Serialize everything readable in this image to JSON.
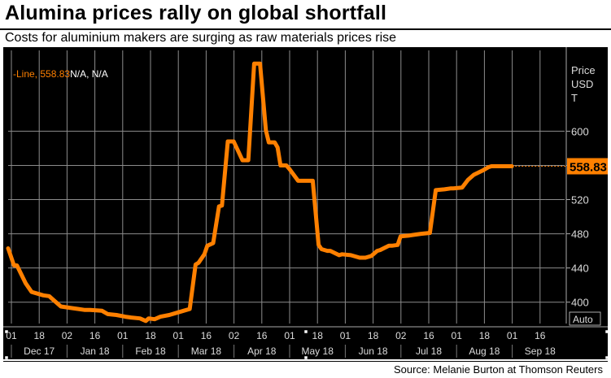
{
  "title": "Alumina prices rally on global shortfall",
  "subtitle": "Costs for aluminium makers are surging as raw materials prices rise",
  "source": "Source: Melanie Burton at Thomson Reuters",
  "chart_data": {
    "type": "line",
    "legend_label": "Line, 558.83",
    "legend_extra": "N/A, N/A",
    "legend_position": "top-left",
    "ylabel_lines": [
      "Price",
      "USD",
      "T"
    ],
    "last_value_label": "558.83",
    "corner_label": "Auto",
    "y_axis_side": "right",
    "ylim": [
      375,
      685
    ],
    "yticks": [
      400,
      440,
      480,
      520,
      560,
      600
    ],
    "ytick_labels": [
      "400",
      "440",
      "480",
      "520",
      "",
      "600"
    ],
    "grid": true,
    "day_ticks": [
      "01",
      "18",
      "02",
      "16",
      "01",
      "18",
      "01",
      "16",
      "02",
      "16",
      "01",
      "18",
      "01",
      "18",
      "02",
      "16",
      "01",
      "18",
      "01",
      "16"
    ],
    "month_labels": [
      "Dec 17",
      "Jan 18",
      "Feb 18",
      "Mar 18",
      "Apr 18",
      "May 18",
      "Jun 18",
      "Jul 18",
      "Aug 18",
      "Sep 18"
    ],
    "colors": {
      "line": "#ff8000",
      "background": "#000000",
      "grid": "#8c8c8c",
      "last_value_bg": "#ff8000"
    },
    "series": [
      {
        "x": [
          0,
          2,
          3,
          6,
          8,
          10,
          12,
          14,
          15,
          18,
          22,
          24,
          26,
          28,
          32,
          34,
          37,
          40,
          42,
          45,
          47,
          48,
          50,
          52,
          55,
          58,
          60,
          62,
          64,
          65,
          67,
          68,
          70,
          72,
          73,
          75,
          77,
          80,
          82,
          84,
          86,
          88,
          89,
          91,
          92,
          93,
          95,
          96,
          99,
          101,
          104,
          106,
          107,
          109,
          110,
          113,
          114,
          117,
          120,
          122,
          124,
          126,
          127,
          130,
          131,
          133,
          134,
          137,
          139,
          141,
          144,
          146,
          149,
          151,
          152,
          155,
          157,
          159,
          162,
          164,
          165,
          167,
          168,
          171,
          172
        ],
        "y": [
          463,
          443,
          443,
          422,
          412,
          410,
          408,
          407,
          404,
          395,
          393,
          392,
          391,
          391,
          390,
          386,
          385,
          383,
          382,
          381,
          378,
          381,
          380,
          383,
          385,
          388,
          390,
          392,
          444,
          446,
          456,
          466,
          469,
          512,
          513,
          588,
          588,
          566,
          566,
          679,
          679,
          601,
          587,
          587,
          581,
          560,
          560,
          556,
          542,
          542,
          542,
          467,
          462,
          460,
          460,
          455,
          456,
          455,
          452,
          452,
          454,
          460,
          461,
          466,
          466,
          467,
          477,
          478,
          479,
          480,
          481,
          531,
          532,
          533,
          533,
          534,
          543,
          549,
          554,
          558,
          559,
          559,
          559,
          559,
          559
        ]
      }
    ]
  }
}
